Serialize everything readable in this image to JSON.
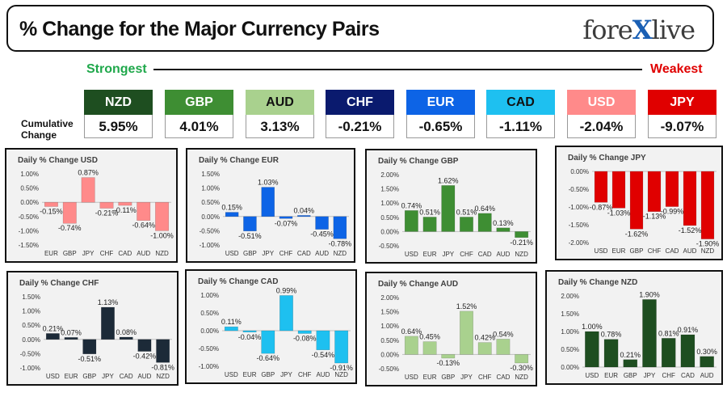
{
  "header": {
    "title": "% Change for the Major Currency Pairs",
    "logo_left": "fore",
    "logo_x": "X",
    "logo_right": "live"
  },
  "legend": {
    "strongest": "Strongest",
    "weakest": "Weakest",
    "cumulative_label": "Cumulative Change"
  },
  "currencies": [
    {
      "code": "NZD",
      "value": "5.95%",
      "bg": "#1e4e20",
      "fg": "#ffffff"
    },
    {
      "code": "GBP",
      "value": "4.01%",
      "bg": "#3e8e33",
      "fg": "#ffffff"
    },
    {
      "code": "AUD",
      "value": "3.13%",
      "bg": "#a9d18e",
      "fg": "#111111"
    },
    {
      "code": "CHF",
      "value": "-0.21%",
      "bg": "#0a1a6e",
      "fg": "#ffffff"
    },
    {
      "code": "EUR",
      "value": "-0.65%",
      "bg": "#0d64e6",
      "fg": "#ffffff"
    },
    {
      "code": "CAD",
      "value": "-1.11%",
      "bg": "#1ec0f0",
      "fg": "#111111"
    },
    {
      "code": "USD",
      "value": "-2.04%",
      "bg": "#ff8a8a",
      "fg": "#ffffff"
    },
    {
      "code": "JPY",
      "value": "-9.07%",
      "bg": "#e00000",
      "fg": "#ffffff"
    }
  ],
  "chart_data": [
    {
      "type": "bar",
      "title": "Daily % Change USD",
      "categories": [
        "EUR",
        "GBP",
        "JPY",
        "CHF",
        "CAD",
        "AUD",
        "NZD"
      ],
      "values": [
        -0.15,
        -0.74,
        0.87,
        -0.21,
        -0.11,
        -0.64,
        -1.0
      ],
      "labels": [
        "-0.15%",
        "-0.74%",
        "0.87%",
        "-0.21%",
        "-0.11%",
        "-0.64%",
        "-1.00%"
      ],
      "ticks": [
        "1.00%",
        "0.50%",
        "0.00%",
        "-0.50%",
        "-1.00%",
        "-1.50%"
      ],
      "tick_values": [
        1,
        0.5,
        0,
        -0.5,
        -1,
        -1.5
      ],
      "ylim": [
        -1.5,
        1.0
      ],
      "color": "#ff8a8a"
    },
    {
      "type": "bar",
      "title": "Daily % Change EUR",
      "categories": [
        "USD",
        "GBP",
        "JPY",
        "CHF",
        "CAD",
        "AUD",
        "NZD"
      ],
      "values": [
        0.15,
        -0.51,
        1.03,
        -0.07,
        0.04,
        -0.45,
        -0.78
      ],
      "labels": [
        "0.15%",
        "-0.51%",
        "1.03%",
        "-0.07%",
        "0.04%",
        "-0.45%",
        "-0.78%"
      ],
      "ticks": [
        "1.50%",
        "1.00%",
        "0.50%",
        "0.00%",
        "-0.50%",
        "-1.00%"
      ],
      "tick_values": [
        1.5,
        1,
        0.5,
        0,
        -0.5,
        -1
      ],
      "ylim": [
        -1.0,
        1.5
      ],
      "color": "#0d64e6"
    },
    {
      "type": "bar",
      "title": "Daily % Change GBP",
      "categories": [
        "USD",
        "EUR",
        "JPY",
        "CHF",
        "CAD",
        "AUD",
        "NZD"
      ],
      "values": [
        0.74,
        0.51,
        1.62,
        0.51,
        0.64,
        0.13,
        -0.21
      ],
      "labels": [
        "0.74%",
        "0.51%",
        "1.62%",
        "0.51%",
        "0.64%",
        "0.13%",
        "-0.21%"
      ],
      "ticks": [
        "2.00%",
        "1.50%",
        "1.00%",
        "0.50%",
        "0.00%",
        "-0.50%"
      ],
      "tick_values": [
        2,
        1.5,
        1,
        0.5,
        0,
        -0.5
      ],
      "ylim": [
        -0.5,
        2.0
      ],
      "color": "#3e8e33"
    },
    {
      "type": "bar",
      "title": "Daily % Change JPY",
      "categories": [
        "USD",
        "EUR",
        "GBP",
        "CHF",
        "CAD",
        "AUD",
        "NZD"
      ],
      "values": [
        -0.87,
        -1.03,
        -1.62,
        -1.13,
        -0.99,
        -1.52,
        -1.9
      ],
      "labels": [
        "-0.87%",
        "-1.03%",
        "-1.62%",
        "-1.13%",
        "-0.99%",
        "-1.52%",
        "-1.90%"
      ],
      "ticks": [
        "0.00%",
        "-0.50%",
        "-1.00%",
        "-1.50%",
        "-2.00%"
      ],
      "tick_values": [
        0,
        -0.5,
        -1,
        -1.5,
        -2
      ],
      "ylim": [
        -2.0,
        0.0
      ],
      "color": "#e00000"
    },
    {
      "type": "bar",
      "title": "Daily % Change CHF",
      "categories": [
        "USD",
        "EUR",
        "GBP",
        "JPY",
        "CAD",
        "AUD",
        "NZD"
      ],
      "values": [
        0.21,
        0.07,
        -0.51,
        1.13,
        0.08,
        -0.42,
        -0.81
      ],
      "labels": [
        "0.21%",
        "0.07%",
        "-0.51%",
        "1.13%",
        "0.08%",
        "-0.42%",
        "-0.81%"
      ],
      "ticks": [
        "1.50%",
        "1.00%",
        "0.50%",
        "0.00%",
        "-0.50%",
        "-1.00%"
      ],
      "tick_values": [
        1.5,
        1,
        0.5,
        0,
        -0.5,
        -1
      ],
      "ylim": [
        -1.0,
        1.5
      ],
      "color": "#1c2a38"
    },
    {
      "type": "bar",
      "title": "Daily % Change CAD",
      "categories": [
        "USD",
        "EUR",
        "GBP",
        "JPY",
        "CHF",
        "AUD",
        "NZD"
      ],
      "values": [
        0.11,
        -0.04,
        -0.64,
        0.99,
        -0.08,
        -0.54,
        -0.91
      ],
      "labels": [
        "0.11%",
        "-0.04%",
        "-0.64%",
        "0.99%",
        "-0.08%",
        "-0.54%",
        "-0.91%"
      ],
      "ticks": [
        "1.00%",
        "0.50%",
        "0.00%",
        "-0.50%",
        "-1.00%"
      ],
      "tick_values": [
        1,
        0.5,
        0,
        -0.5,
        -1
      ],
      "ylim": [
        -1.0,
        1.0
      ],
      "color": "#1ec0f0"
    },
    {
      "type": "bar",
      "title": "Daily % Change AUD",
      "categories": [
        "USD",
        "EUR",
        "GBP",
        "JPY",
        "CHF",
        "CAD",
        "NZD"
      ],
      "values": [
        0.64,
        0.45,
        -0.13,
        1.52,
        0.42,
        0.54,
        -0.3
      ],
      "labels": [
        "0.64%",
        "0.45%",
        "-0.13%",
        "1.52%",
        "0.42%",
        "0.54%",
        "-0.30%"
      ],
      "ticks": [
        "2.00%",
        "1.50%",
        "1.00%",
        "0.50%",
        "0.00%",
        "-0.50%"
      ],
      "tick_values": [
        2,
        1.5,
        1,
        0.5,
        0,
        -0.5
      ],
      "ylim": [
        -0.5,
        2.0
      ],
      "color": "#a9d18e"
    },
    {
      "type": "bar",
      "title": "Daily % Change NZD",
      "categories": [
        "USD",
        "EUR",
        "GBP",
        "JPY",
        "CHF",
        "CAD",
        "AUD"
      ],
      "values": [
        1.0,
        0.78,
        0.21,
        1.9,
        0.81,
        0.91,
        0.3
      ],
      "labels": [
        "1.00%",
        "0.78%",
        "0.21%",
        "1.90%",
        "0.81%",
        "0.91%",
        "0.30%"
      ],
      "ticks": [
        "2.00%",
        "1.50%",
        "1.00%",
        "0.50%",
        "0.00%"
      ],
      "tick_values": [
        2,
        1.5,
        1,
        0.5,
        0
      ],
      "ylim": [
        0.0,
        2.0
      ],
      "color": "#1e4e20"
    }
  ]
}
